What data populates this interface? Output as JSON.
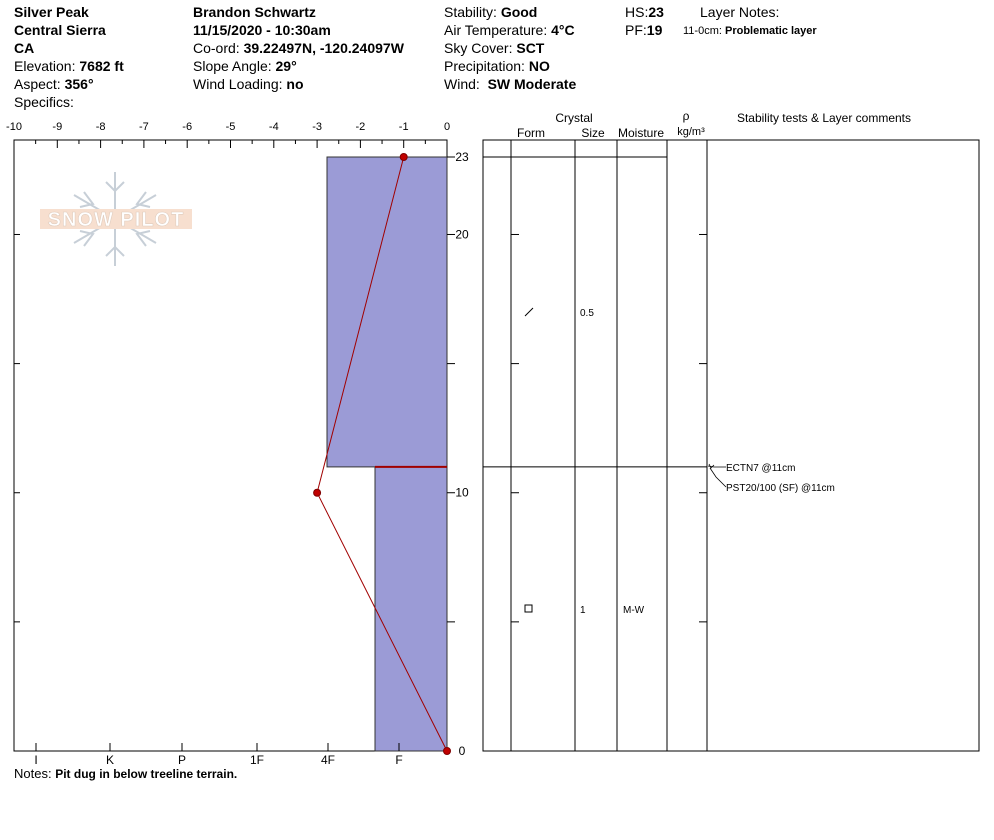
{
  "header": {
    "location": "Silver Peak",
    "range": "Central Sierra",
    "state": "CA",
    "elevation_label": "Elevation:",
    "elevation": "7682 ft",
    "aspect_label": "Aspect:",
    "aspect": "356°",
    "specifics_label": "Specifics:",
    "observer": "Brandon Schwartz",
    "datetime": "11/15/2020 - 10:30am",
    "coord_label": "Co-ord:",
    "coord": "39.22497N, -120.24097W",
    "slope_label": "Slope Angle:",
    "slope": "29°",
    "wind_loading_label": "Wind Loading:",
    "wind_loading": "no",
    "stability_label": "Stability:",
    "stability": "Good",
    "air_temp_label": "Air Temperature:",
    "air_temp": "4°C",
    "sky_label": "Sky Cover:",
    "sky": "SCT",
    "precip_label": "Precipitation:",
    "precip": "NO",
    "wind_label": "Wind:",
    "wind": "SW Moderate",
    "hs_label": "HS:",
    "hs": "23",
    "pf_label": "PF:",
    "pf": "19",
    "layer_notes_label": "Layer Notes:",
    "layer_note_range": "11-0cm:",
    "layer_note_text": "Problematic layer"
  },
  "logo_text": "SNOW PILOT",
  "columns": {
    "crystal": "Crystal",
    "form": "Form",
    "size": "Size",
    "moisture": "Moisture",
    "rho": "ρ",
    "density_unit": "kg/m³",
    "comments": "Stability tests & Layer comments"
  },
  "layers": [
    {
      "form": "/",
      "size": "0.5",
      "moisture": ""
    },
    {
      "form": "□",
      "size": "1",
      "moisture": "M-W"
    }
  ],
  "stability_tests": [
    "ECTN7 @11cm",
    "PST20/100 (SF) @11cm"
  ],
  "notes_label": "Notes:",
  "notes": "Pit dug in below treeline terrain.",
  "colors": {
    "hardness_fill": "#9b9bd6",
    "temp_line": "#a00000"
  },
  "chart_data": {
    "type": "snow_profile",
    "temperature_axis": {
      "ticks": [
        "-10",
        "-9",
        "-8",
        "-7",
        "-6",
        "-5",
        "-4",
        "-3",
        "-2",
        "-1",
        "0"
      ],
      "range": [
        -10,
        0
      ]
    },
    "hardness_axis": {
      "ticks": [
        "I",
        "K",
        "P",
        "1F",
        "4F",
        "F"
      ]
    },
    "depth_axis": {
      "ticks": [
        "23",
        "20",
        "10",
        "0"
      ],
      "range": [
        0,
        23
      ]
    },
    "hardness_layers": [
      {
        "top": 23,
        "bottom": 11,
        "hardness": "4F-"
      },
      {
        "top": 11,
        "bottom": 0,
        "hardness": "F+"
      }
    ],
    "temperature_profile": [
      {
        "depth": 23,
        "temp": -1.0
      },
      {
        "depth": 10,
        "temp": -3.0
      },
      {
        "depth": 0,
        "temp": 0.0
      }
    ],
    "layer_boundaries": [
      23,
      11,
      0
    ]
  }
}
